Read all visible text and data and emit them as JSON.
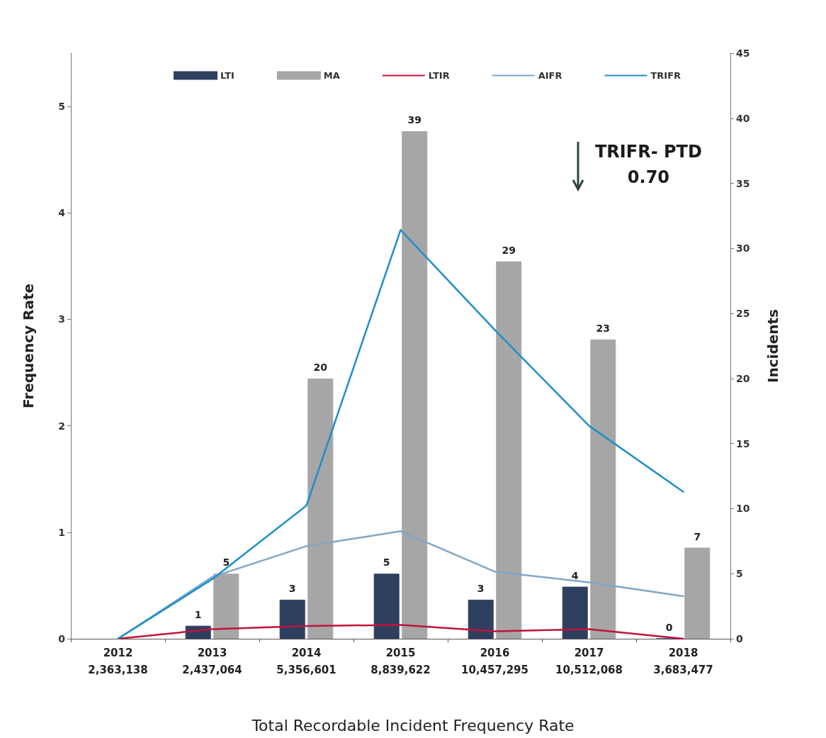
{
  "chart_data": {
    "type": "bar",
    "title": "Total Recordable Incident Frequency Rate",
    "categories": [
      "2012\n2,363,138",
      "2013\n2,437,064",
      "2014\n5,356,601",
      "2015\n8,839,622",
      "2016\n10,457,295",
      "2017\n10,512,068",
      "2018\n3,683,477"
    ],
    "series": [
      {
        "name": "LTI",
        "axis": "y2",
        "color": "#2f3f5f",
        "values": [
          null,
          1,
          3,
          5,
          3,
          4,
          0
        ],
        "value_labels": [
          null,
          "1",
          "3",
          "5",
          "3",
          "4",
          "0"
        ]
      },
      {
        "name": "MA",
        "axis": "y2",
        "color": "#a6a6a6",
        "values": [
          null,
          5,
          20,
          39,
          29,
          23,
          7
        ],
        "value_labels": [
          null,
          "5",
          "20",
          "39",
          "29",
          "23",
          "7"
        ]
      },
      {
        "name": "LTIR",
        "type": "line",
        "color": "#c0143c",
        "values": [
          0,
          0.09,
          0.12,
          0.13,
          0.07,
          0.09,
          0
        ]
      },
      {
        "name": "AIFR",
        "type": "line",
        "color": "#7fa7c9",
        "values": [
          0,
          0.58,
          0.87,
          1.01,
          0.63,
          0.53,
          0.4
        ]
      },
      {
        "name": "TRIFR",
        "type": "line",
        "color": "#1f8fc8",
        "values": [
          0,
          0.56,
          1.25,
          3.84,
          2.9,
          2.0,
          1.38
        ]
      }
    ],
    "ylabel": "Frequency Rate",
    "y2label": "Incidents",
    "ylim": [
      0,
      5.5
    ],
    "yticks": [
      0,
      1,
      2,
      3,
      4,
      5
    ],
    "y2lim": [
      0,
      45
    ],
    "y2ticks": [
      0,
      5,
      10,
      15,
      20,
      25,
      30,
      35,
      40,
      45
    ],
    "annotations": [
      "TRIFR- PTD\n0.70"
    ],
    "legend": "top",
    "grid": false,
    "marker": "none",
    "line_style": "solid"
  }
}
